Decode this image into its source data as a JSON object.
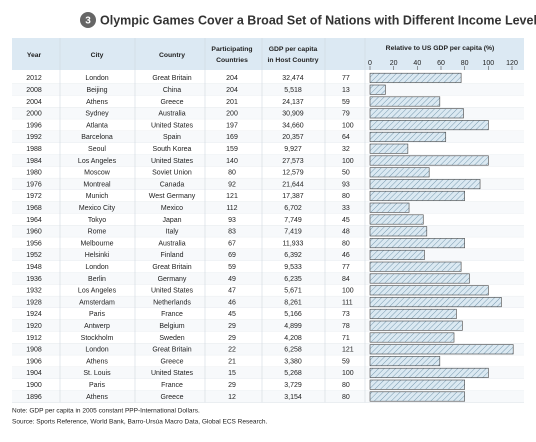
{
  "title": {
    "badge": "3",
    "text": "Olympic Games Cover a Broad Set of Nations with Different Income Levels"
  },
  "table": {
    "headers": [
      [
        "Year"
      ],
      [
        "City"
      ],
      [
        "Country"
      ],
      [
        "Participating",
        "Countries"
      ],
      [
        "GDP per capita",
        "in Host Country"
      ],
      [
        "Relative to US GDP per capita (%)"
      ]
    ],
    "rows": [
      [
        2012,
        "London",
        "Great Britain",
        204,
        "32,474",
        77
      ],
      [
        2008,
        "Beijing",
        "China",
        204,
        "5,518",
        13
      ],
      [
        2004,
        "Athens",
        "Greece",
        201,
        "24,137",
        59
      ],
      [
        2000,
        "Sydney",
        "Australia",
        200,
        "30,909",
        79
      ],
      [
        1996,
        "Atlanta",
        "United States",
        197,
        "34,660",
        100
      ],
      [
        1992,
        "Barcelona",
        "Spain",
        169,
        "20,357",
        64
      ],
      [
        1988,
        "Seoul",
        "South Korea",
        159,
        "9,927",
        32
      ],
      [
        1984,
        "Los Angeles",
        "United States",
        140,
        "27,573",
        100
      ],
      [
        1980,
        "Moscow",
        "Soviet Union",
        80,
        "12,579",
        50
      ],
      [
        1976,
        "Montreal",
        "Canada",
        92,
        "21,644",
        93
      ],
      [
        1972,
        "Munich",
        "West Germany",
        121,
        "17,387",
        80
      ],
      [
        1968,
        "Mexico City",
        "Mexico",
        112,
        "6,702",
        33
      ],
      [
        1964,
        "Tokyo",
        "Japan",
        93,
        "7,749",
        45
      ],
      [
        1960,
        "Rome",
        "Italy",
        83,
        "7,419",
        48
      ],
      [
        1956,
        "Melbourne",
        "Australia",
        67,
        "11,933",
        80
      ],
      [
        1952,
        "Helsinki",
        "Finland",
        69,
        "6,392",
        46
      ],
      [
        1948,
        "London",
        "Great Britain",
        59,
        "9,533",
        77
      ],
      [
        1936,
        "Berlin",
        "Germany",
        49,
        "6,235",
        84
      ],
      [
        1932,
        "Los Angeles",
        "United States",
        47,
        "5,671",
        100
      ],
      [
        1928,
        "Amsterdam",
        "Netherlands",
        46,
        "8,261",
        111
      ],
      [
        1924,
        "Paris",
        "France",
        45,
        "5,166",
        73
      ],
      [
        1920,
        "Antwerp",
        "Belgium",
        29,
        "4,899",
        78
      ],
      [
        1912,
        "Stockholm",
        "Sweden",
        29,
        "4,208",
        71
      ],
      [
        1908,
        "London",
        "Great Britain",
        22,
        "6,258",
        121
      ],
      [
        1906,
        "Athens",
        "Greece",
        21,
        "3,380",
        59
      ],
      [
        1904,
        "St. Louis",
        "United States",
        15,
        "5,268",
        100
      ],
      [
        1900,
        "Paris",
        "France",
        29,
        "3,729",
        80
      ],
      [
        1896,
        "Athens",
        "Greece",
        12,
        "3,154",
        80
      ]
    ],
    "bar_axis": {
      "xlim": [
        0,
        120
      ],
      "xticks": [
        0,
        20,
        40,
        60,
        80,
        100,
        120
      ]
    }
  },
  "notes": [
    "Note: GDP per capita in 2005 constant PPP-International Dollars.",
    "Source: Sports Reference, World Bank, Barro-Ursúa Macro Data, Global ECS Research."
  ]
}
